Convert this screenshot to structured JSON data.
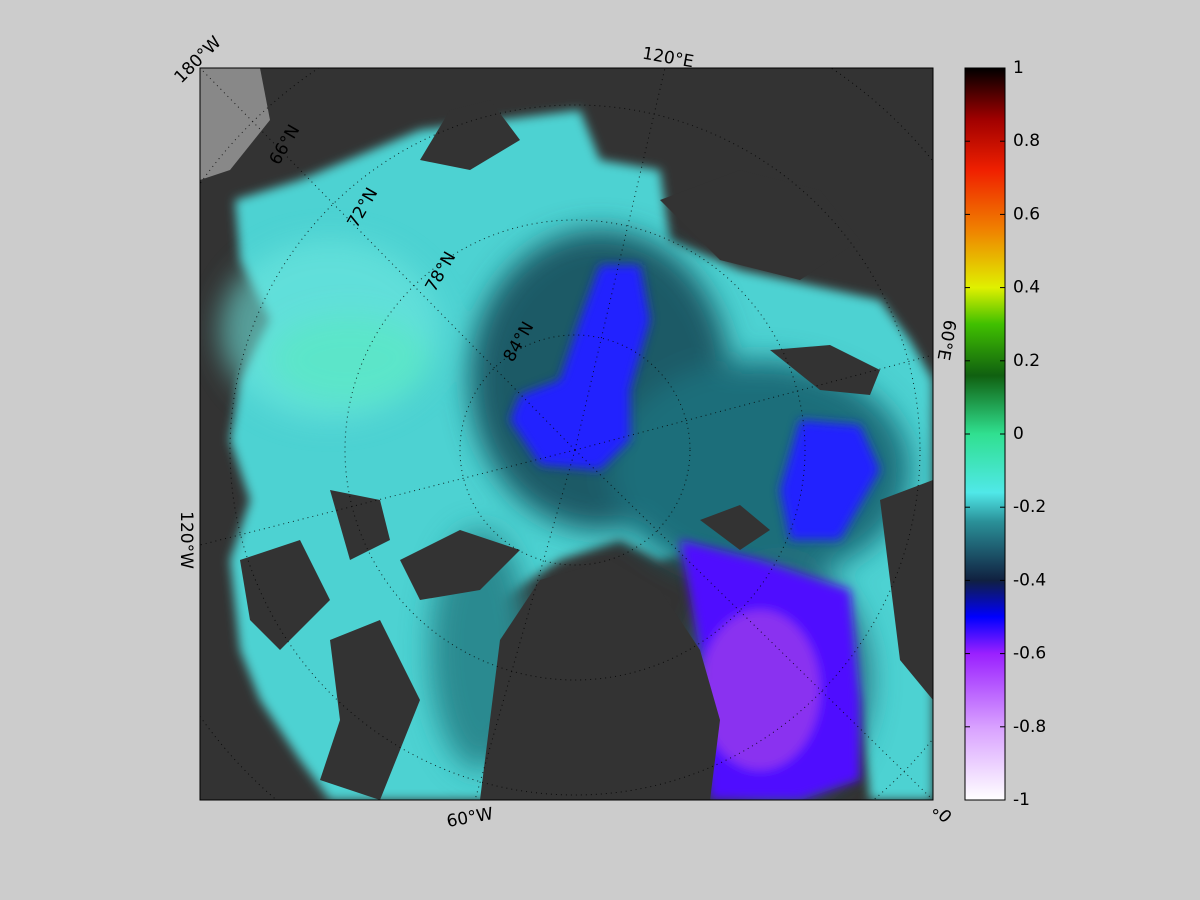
{
  "map": {
    "meridian_labels": [
      "180°W",
      "120°E",
      "60°E",
      "0°",
      "60°W",
      "120°W"
    ],
    "parallel_labels": [
      "66°N",
      "72°N",
      "78°N",
      "84°N"
    ],
    "colorbar": {
      "lim": [
        -1,
        1
      ],
      "ticks": [
        -1,
        -0.8,
        -0.6,
        -0.4,
        -0.2,
        0,
        0.2,
        0.4,
        0.6,
        0.8,
        1
      ]
    }
  }
}
